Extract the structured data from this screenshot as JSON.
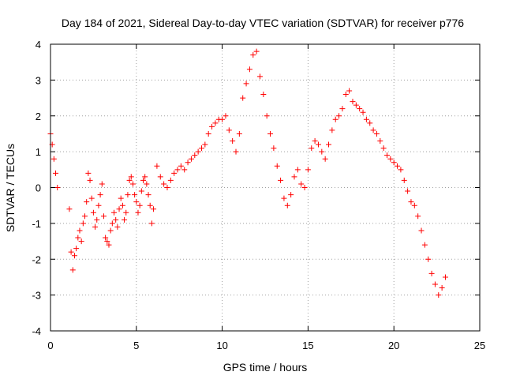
{
  "chart_data": {
    "type": "scatter",
    "title": "Day 184 of 2021, Sidereal Day-to-day VTEC variation (SDTVAR) for receiver p776",
    "xlabel": "GPS time / hours",
    "ylabel": "SDTVAR / TECUs",
    "xlim": [
      0,
      25
    ],
    "ylim": [
      -4,
      4
    ],
    "xticks": [
      "0",
      "5",
      "10",
      "15",
      "20",
      "25"
    ],
    "yticks": [
      "-4",
      "-3",
      "-2",
      "-1",
      "0",
      "1",
      "2",
      "3",
      "4"
    ],
    "grid": true,
    "marker": "+",
    "series": [
      {
        "name": "SDTVAR",
        "color": "#ff0000",
        "x": [
          0.0,
          0.1,
          0.2,
          0.3,
          0.4,
          1.1,
          1.2,
          1.3,
          1.4,
          1.5,
          1.6,
          1.7,
          1.8,
          1.9,
          2.0,
          2.1,
          2.2,
          2.3,
          2.4,
          2.5,
          2.6,
          2.7,
          2.8,
          2.9,
          3.0,
          3.1,
          3.2,
          3.3,
          3.4,
          3.5,
          3.6,
          3.7,
          3.8,
          3.9,
          4.0,
          4.1,
          4.2,
          4.3,
          4.4,
          4.5,
          4.6,
          4.7,
          4.8,
          4.9,
          5.0,
          5.1,
          5.2,
          5.3,
          5.4,
          5.5,
          5.6,
          5.7,
          5.8,
          5.9,
          6.0,
          6.2,
          6.4,
          6.6,
          6.8,
          7.0,
          7.2,
          7.4,
          7.6,
          7.8,
          8.0,
          8.2,
          8.4,
          8.6,
          8.8,
          9.0,
          9.2,
          9.4,
          9.6,
          9.8,
          10.0,
          10.2,
          10.4,
          10.6,
          10.8,
          11.0,
          11.2,
          11.4,
          11.6,
          11.8,
          12.0,
          12.2,
          12.4,
          12.6,
          12.8,
          13.0,
          13.2,
          13.4,
          13.6,
          13.8,
          14.0,
          14.2,
          14.4,
          14.6,
          14.8,
          15.0,
          15.2,
          15.4,
          15.6,
          15.8,
          16.0,
          16.2,
          16.4,
          16.6,
          16.8,
          17.0,
          17.2,
          17.4,
          17.6,
          17.8,
          18.0,
          18.2,
          18.4,
          18.6,
          18.8,
          19.0,
          19.2,
          19.4,
          19.6,
          19.8,
          20.0,
          20.2,
          20.4,
          20.6,
          20.8,
          21.0,
          21.2,
          21.4,
          21.6,
          21.8,
          22.0,
          22.2,
          22.4,
          22.6,
          22.8,
          23.0
        ],
        "y": [
          1.5,
          1.2,
          0.8,
          0.4,
          0.0,
          -0.6,
          -1.8,
          -2.3,
          -1.9,
          -1.7,
          -1.4,
          -1.2,
          -1.5,
          -1.0,
          -0.8,
          -0.4,
          0.4,
          0.2,
          -0.3,
          -0.7,
          -1.1,
          -0.9,
          -0.5,
          -0.2,
          0.1,
          -0.8,
          -1.4,
          -1.5,
          -1.6,
          -1.2,
          -1.0,
          -0.7,
          -0.9,
          -1.1,
          -0.6,
          -0.3,
          -0.5,
          -0.9,
          -0.7,
          -0.2,
          0.2,
          0.3,
          0.1,
          -0.2,
          -0.4,
          -0.7,
          -0.5,
          -0.1,
          0.2,
          0.3,
          0.1,
          -0.2,
          -0.5,
          -1.0,
          -0.6,
          0.6,
          0.3,
          0.1,
          0.0,
          0.2,
          0.4,
          0.5,
          0.6,
          0.5,
          0.7,
          0.8,
          0.9,
          1.0,
          1.1,
          1.2,
          1.5,
          1.7,
          1.8,
          1.9,
          1.9,
          2.0,
          1.6,
          1.3,
          1.0,
          1.5,
          2.5,
          2.9,
          3.3,
          3.7,
          3.8,
          3.1,
          2.6,
          2.0,
          1.5,
          1.1,
          0.6,
          0.2,
          -0.3,
          -0.5,
          -0.2,
          0.3,
          0.5,
          0.1,
          0.0,
          0.5,
          1.1,
          1.3,
          1.2,
          1.0,
          0.8,
          1.2,
          1.6,
          1.9,
          2.0,
          2.2,
          2.6,
          2.7,
          2.4,
          2.3,
          2.2,
          2.1,
          1.9,
          1.8,
          1.6,
          1.5,
          1.3,
          1.1,
          0.9,
          0.8,
          0.7,
          0.6,
          0.5,
          0.2,
          -0.1,
          -0.4,
          -0.5,
          -0.8,
          -1.2,
          -1.6,
          -2.0,
          -2.4,
          -2.7,
          -3.0,
          -2.8,
          -2.5
        ]
      }
    ]
  }
}
